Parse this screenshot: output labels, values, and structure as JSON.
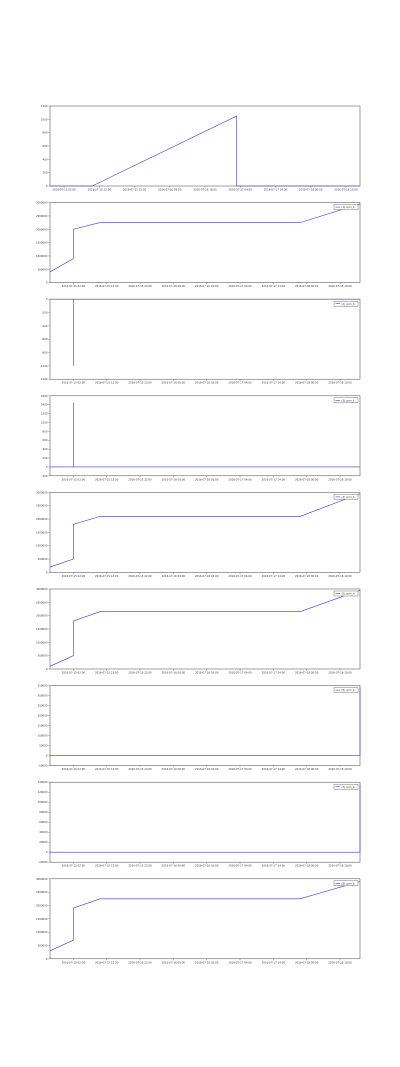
{
  "chart_data": [
    {
      "type": "line",
      "xlim": [
        0,
        88
      ],
      "xticks": [
        {
          "value": 4,
          "label": "2016-07-15 02:00"
        },
        {
          "value": 14,
          "label": "2016-07-15 12:00"
        },
        {
          "value": 24,
          "label": "2016-07-15 22:00"
        },
        {
          "value": 34,
          "label": "2016-07-16 08:00"
        },
        {
          "value": 44,
          "label": "2016-07-16 18:00"
        },
        {
          "value": 54,
          "label": "2016-07-17 04:00"
        },
        {
          "value": 64,
          "label": "2016-07-17 14:00"
        },
        {
          "value": 74,
          "label": "2016-07-18 00:00"
        },
        {
          "value": 84,
          "label": "2016-07-18 10:00"
        }
      ],
      "ylim": [
        0,
        1200
      ],
      "yticks": [
        0,
        200,
        400,
        600,
        800,
        1000,
        1200
      ],
      "series": [
        {
          "color": "#3a3ad8",
          "x": [
            0,
            12,
            53,
            53,
            88
          ],
          "values": [
            0,
            0,
            1050,
            0,
            0
          ]
        }
      ]
    },
    {
      "type": "line",
      "xlim": [
        0,
        93
      ],
      "legend": "upper right",
      "xticks": [
        {
          "value": 7,
          "label": "2016-07-15 02:00"
        },
        {
          "value": 17,
          "label": "2016-07-15 12:00"
        },
        {
          "value": 27,
          "label": "2016-07-15 22:00"
        },
        {
          "value": 37,
          "label": "2016-07-16 08:00"
        },
        {
          "value": 47,
          "label": "2016-07-16 18:00"
        },
        {
          "value": 57,
          "label": "2016-07-17 04:00"
        },
        {
          "value": 67,
          "label": "2016-07-17 14:00"
        },
        {
          "value": 77,
          "label": "2016-07-18 00:00"
        },
        {
          "value": 87,
          "label": "2016-07-18 10:00"
        }
      ],
      "ylim": [
        0,
        3000000
      ],
      "yticks": [
        0,
        500000,
        1000000,
        1500000,
        2000000,
        2500000,
        3000000
      ],
      "series": [
        {
          "name": "(1) cpm_b",
          "color": "#3a3ad8",
          "x": [
            0,
            7,
            7,
            15,
            75,
            93
          ],
          "values": [
            400000,
            900000,
            2000000,
            2250000,
            2250000,
            2950000
          ]
        }
      ]
    },
    {
      "type": "line",
      "xlim": [
        0,
        93
      ],
      "legend": "upper right",
      "xticks": [
        {
          "value": 7,
          "label": "2016-07-15 02:00"
        },
        {
          "value": 17,
          "label": "2016-07-15 12:00"
        },
        {
          "value": 27,
          "label": "2016-07-15 22:00"
        },
        {
          "value": 37,
          "label": "2016-07-16 08:00"
        },
        {
          "value": 47,
          "label": "2016-07-16 18:00"
        },
        {
          "value": 57,
          "label": "2016-07-17 04:00"
        },
        {
          "value": 67,
          "label": "2016-07-17 14:00"
        },
        {
          "value": 77,
          "label": "2016-07-18 00:00"
        },
        {
          "value": 87,
          "label": "2016-07-18 10:00"
        }
      ],
      "ylim": [
        -1200,
        0
      ],
      "yticks": [
        -1200,
        -1000,
        -800,
        -600,
        -400,
        -200,
        0
      ],
      "series": [
        {
          "name": "(2) cpm_b",
          "color": "#3a3ad8",
          "x": [
            0,
            7,
            7,
            7,
            93
          ],
          "values": [
            0,
            0,
            -1000,
            0,
            0
          ]
        }
      ]
    },
    {
      "type": "line",
      "xlim": [
        0,
        93
      ],
      "legend": "upper right",
      "xticks": [
        {
          "value": 7,
          "label": "2016-07-15 02:00"
        },
        {
          "value": 17,
          "label": "2016-07-15 12:00"
        },
        {
          "value": 27,
          "label": "2016-07-15 22:00"
        },
        {
          "value": 37,
          "label": "2016-07-16 08:00"
        },
        {
          "value": 47,
          "label": "2016-07-16 18:00"
        },
        {
          "value": 57,
          "label": "2016-07-17 04:00"
        },
        {
          "value": 67,
          "label": "2016-07-17 14:00"
        },
        {
          "value": 77,
          "label": "2016-07-18 00:00"
        },
        {
          "value": 87,
          "label": "2016-07-18 10:00"
        }
      ],
      "ylim": [
        -200,
        1600
      ],
      "yticks": [
        -200,
        0,
        200,
        400,
        600,
        800,
        1000,
        1200,
        1400,
        1600
      ],
      "series": [
        {
          "name": "(3) cpm_b",
          "color": "#3a3ad8",
          "x": [
            0,
            7,
            7,
            7,
            93
          ],
          "values": [
            0,
            0,
            1450,
            0,
            0
          ]
        }
      ]
    },
    {
      "type": "line",
      "xlim": [
        0,
        93
      ],
      "legend": "upper right",
      "xticks": [
        {
          "value": 7,
          "label": "2016-07-15 02:00"
        },
        {
          "value": 17,
          "label": "2016-07-15 12:00"
        },
        {
          "value": 27,
          "label": "2016-07-15 22:00"
        },
        {
          "value": 37,
          "label": "2016-07-16 08:00"
        },
        {
          "value": 47,
          "label": "2016-07-16 18:00"
        },
        {
          "value": 57,
          "label": "2016-07-17 04:00"
        },
        {
          "value": 67,
          "label": "2016-07-17 14:00"
        },
        {
          "value": 77,
          "label": "2016-07-18 00:00"
        },
        {
          "value": 87,
          "label": "2016-07-18 10:00"
        }
      ],
      "ylim": [
        0,
        3000000
      ],
      "yticks": [
        0,
        500000,
        1000000,
        1500000,
        2000000,
        2500000,
        3000000
      ],
      "series": [
        {
          "name": "(4) cpm_b",
          "color": "#3a3ad8",
          "x": [
            0,
            7,
            7,
            15,
            75,
            93
          ],
          "values": [
            200000,
            500000,
            1800000,
            2100000,
            2100000,
            2950000
          ]
        }
      ]
    },
    {
      "type": "line",
      "xlim": [
        0,
        93
      ],
      "legend": "upper right",
      "xticks": [
        {
          "value": 7,
          "label": "2016-07-15 02:00"
        },
        {
          "value": 17,
          "label": "2016-07-15 12:00"
        },
        {
          "value": 27,
          "label": "2016-07-15 22:00"
        },
        {
          "value": 37,
          "label": "2016-07-16 08:00"
        },
        {
          "value": 47,
          "label": "2016-07-16 18:00"
        },
        {
          "value": 57,
          "label": "2016-07-17 04:00"
        },
        {
          "value": 67,
          "label": "2016-07-17 14:00"
        },
        {
          "value": 77,
          "label": "2016-07-18 00:00"
        },
        {
          "value": 87,
          "label": "2016-07-18 10:00"
        }
      ],
      "ylim": [
        0,
        3000000
      ],
      "yticks": [
        0,
        500000,
        1000000,
        1500000,
        2000000,
        2500000,
        3000000
      ],
      "series": [
        {
          "name": "(5) cpm_b",
          "color": "#3a3ad8",
          "x": [
            0,
            7,
            7,
            15,
            75,
            93
          ],
          "values": [
            100000,
            500000,
            1800000,
            2150000,
            2150000,
            2950000
          ]
        }
      ]
    },
    {
      "type": "line",
      "xlim": [
        0,
        93
      ],
      "legend": "upper right",
      "xticks": [
        {
          "value": 7,
          "label": "2016-07-15 02:00"
        },
        {
          "value": 17,
          "label": "2016-07-15 12:00"
        },
        {
          "value": 27,
          "label": "2016-07-15 22:00"
        },
        {
          "value": 37,
          "label": "2016-07-16 08:00"
        },
        {
          "value": 47,
          "label": "2016-07-16 18:00"
        },
        {
          "value": 57,
          "label": "2016-07-17 04:00"
        },
        {
          "value": 67,
          "label": "2016-07-17 14:00"
        },
        {
          "value": 77,
          "label": "2016-07-18 00:00"
        },
        {
          "value": 87,
          "label": "2016-07-18 10:00"
        }
      ],
      "ylim": [
        -50000,
        350000
      ],
      "yticks": [
        -50000,
        0,
        50000,
        100000,
        150000,
        200000,
        250000,
        300000,
        350000
      ],
      "series": [
        {
          "name": "(6) cpm_b",
          "color": "#3a3ad8",
          "x": [
            0,
            93,
            93
          ],
          "values": [
            0,
            0,
            340000
          ]
        }
      ]
    },
    {
      "type": "line",
      "xlim": [
        0,
        93
      ],
      "legend": "upper right",
      "xticks": [
        {
          "value": 7,
          "label": "2016-07-15 02:00"
        },
        {
          "value": 17,
          "label": "2016-07-15 12:00"
        },
        {
          "value": 27,
          "label": "2016-07-15 22:00"
        },
        {
          "value": 37,
          "label": "2016-07-16 08:00"
        },
        {
          "value": 47,
          "label": "2016-07-16 18:00"
        },
        {
          "value": 57,
          "label": "2016-07-17 04:00"
        },
        {
          "value": 67,
          "label": "2016-07-17 14:00"
        },
        {
          "value": 77,
          "label": "2016-07-18 00:00"
        },
        {
          "value": 87,
          "label": "2016-07-18 10:00"
        }
      ],
      "ylim": [
        -20000,
        140000
      ],
      "yticks": [
        -20000,
        0,
        20000,
        40000,
        60000,
        80000,
        100000,
        120000,
        140000
      ],
      "series": [
        {
          "name": "(7) cpm_b",
          "color": "#3a3ad8",
          "x": [
            0,
            93,
            93
          ],
          "values": [
            0,
            0,
            135000
          ]
        }
      ]
    },
    {
      "type": "line",
      "xlim": [
        0,
        93
      ],
      "legend": "upper right",
      "xticks": [
        {
          "value": 7,
          "label": "2016-07-15 02:00"
        },
        {
          "value": 17,
          "label": "2016-07-15 12:00"
        },
        {
          "value": 27,
          "label": "2016-07-15 22:00"
        },
        {
          "value": 37,
          "label": "2016-07-16 08:00"
        },
        {
          "value": 47,
          "label": "2016-07-16 18:00"
        },
        {
          "value": 57,
          "label": "2016-07-17 04:00"
        },
        {
          "value": 67,
          "label": "2016-07-17 14:00"
        },
        {
          "value": 77,
          "label": "2016-07-18 00:00"
        },
        {
          "value": 87,
          "label": "2016-07-18 10:00"
        }
      ],
      "ylim": [
        0,
        3000000
      ],
      "yticks": [
        0,
        500000,
        1000000,
        1500000,
        2000000,
        2500000,
        3000000
      ],
      "series": [
        {
          "name": "(8) cpm_b",
          "color": "#3a3ad8",
          "x": [
            0,
            7,
            7,
            15,
            75,
            93
          ],
          "values": [
            300000,
            700000,
            1900000,
            2250000,
            2250000,
            2900000
          ]
        }
      ]
    }
  ]
}
